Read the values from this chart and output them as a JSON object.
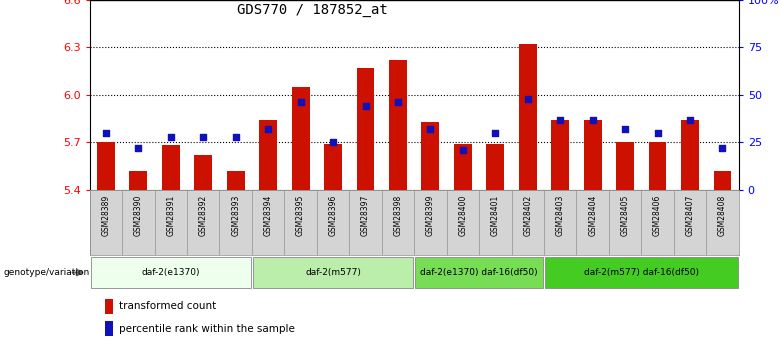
{
  "title": "GDS770 / 187852_at",
  "samples": [
    "GSM28389",
    "GSM28390",
    "GSM28391",
    "GSM28392",
    "GSM28393",
    "GSM28394",
    "GSM28395",
    "GSM28396",
    "GSM28397",
    "GSM28398",
    "GSM28399",
    "GSM28400",
    "GSM28401",
    "GSM28402",
    "GSM28403",
    "GSM28404",
    "GSM28405",
    "GSM28406",
    "GSM28407",
    "GSM28408"
  ],
  "bar_values": [
    5.7,
    5.52,
    5.68,
    5.62,
    5.52,
    5.84,
    6.05,
    5.69,
    6.17,
    6.22,
    5.83,
    5.69,
    5.69,
    6.32,
    5.84,
    5.84,
    5.7,
    5.7,
    5.84,
    5.52
  ],
  "dot_percentiles": [
    30,
    22,
    28,
    28,
    28,
    32,
    46,
    25,
    44,
    46,
    32,
    21,
    30,
    48,
    37,
    37,
    32,
    30,
    37,
    22
  ],
  "ymin": 5.4,
  "ymax": 6.6,
  "yticks_left": [
    5.4,
    5.7,
    6.0,
    6.3,
    6.6
  ],
  "yticks_right": [
    0,
    25,
    50,
    75,
    100
  ],
  "ytick_right_labels": [
    "0",
    "25",
    "50",
    "75",
    "100%"
  ],
  "bar_color": "#cc1100",
  "dot_color": "#1111bb",
  "groups": [
    {
      "label": "daf-2(e1370)",
      "start": 0,
      "end": 5,
      "color": "#eeffee"
    },
    {
      "label": "daf-2(m577)",
      "start": 5,
      "end": 10,
      "color": "#bbeeaa"
    },
    {
      "label": "daf-2(e1370) daf-16(df50)",
      "start": 10,
      "end": 14,
      "color": "#77dd55"
    },
    {
      "label": "daf-2(m577) daf-16(df50)",
      "start": 14,
      "end": 20,
      "color": "#44cc22"
    }
  ],
  "genotype_label": "genotype/variation",
  "legend_bar_label": "transformed count",
  "legend_dot_label": "percentile rank within the sample"
}
